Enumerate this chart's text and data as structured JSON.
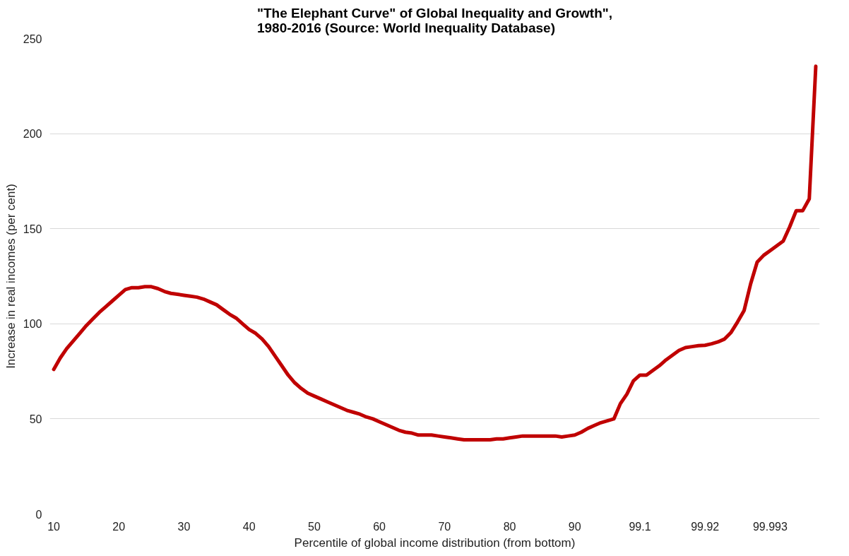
{
  "chart_data": {
    "type": "line",
    "title": "\"The Elephant Curve\" of Global Inequality and Growth\",\n1980-2016 (Source: World Inequality Database)",
    "xlabel": "Percentile of global income distribution (from bottom)",
    "ylabel": "Increase in real incomes (per cent)",
    "categories": [
      "10",
      null,
      null,
      null,
      null,
      null,
      null,
      null,
      null,
      null,
      "20",
      null,
      null,
      null,
      null,
      null,
      null,
      null,
      null,
      null,
      "30",
      null,
      null,
      null,
      null,
      null,
      null,
      null,
      null,
      null,
      "40",
      null,
      null,
      null,
      null,
      null,
      null,
      null,
      null,
      null,
      "50",
      null,
      null,
      null,
      null,
      null,
      null,
      null,
      null,
      null,
      "60",
      null,
      null,
      null,
      null,
      null,
      null,
      null,
      null,
      null,
      "70",
      null,
      null,
      null,
      null,
      null,
      null,
      null,
      null,
      null,
      "80",
      null,
      null,
      null,
      null,
      null,
      null,
      null,
      null,
      null,
      "90",
      null,
      null,
      null,
      null,
      null,
      null,
      null,
      null,
      null,
      "99.1",
      null,
      null,
      null,
      null,
      null,
      null,
      null,
      null,
      null,
      "99.92",
      null,
      null,
      null,
      null,
      null,
      null,
      null,
      null,
      null,
      "99.993",
      null,
      null,
      null,
      null,
      null,
      null,
      null
    ],
    "series": [
      {
        "color": "#c00000",
        "values": [
          76,
          82,
          87,
          91,
          95,
          99,
          102.5,
          106,
          109,
          112,
          115,
          118,
          119,
          119,
          119.5,
          119.5,
          118.5,
          117,
          116,
          115.5,
          115,
          114.5,
          114,
          113,
          111.5,
          110,
          107.5,
          105,
          103,
          100,
          97,
          95,
          92,
          88,
          83,
          78,
          73,
          69,
          66,
          63.5,
          62,
          60.5,
          59,
          57.5,
          56,
          54.5,
          53.5,
          52.5,
          51,
          50,
          48.5,
          47,
          45.5,
          44,
          43,
          42.5,
          41.5,
          41.5,
          41.5,
          41,
          40.5,
          40,
          39.5,
          39,
          39,
          39,
          39,
          39,
          39.5,
          39.5,
          40,
          40.5,
          41,
          41,
          41,
          41,
          41,
          41,
          40.5,
          41,
          41.5,
          43,
          45,
          46.5,
          48,
          49,
          50,
          58,
          63,
          70,
          73,
          73,
          75.5,
          78,
          81,
          83.5,
          86,
          87.5,
          88,
          88.5,
          88.7,
          89.5,
          90.5,
          92,
          95.5,
          101,
          107,
          121,
          132.4,
          136,
          138.5,
          141,
          143.5,
          151,
          159.5,
          159.5,
          165.7,
          235.4
        ]
      }
    ],
    "ylim": [
      0,
      250
    ],
    "yticks": [
      0,
      50,
      100,
      150,
      200,
      250
    ],
    "grid": "y",
    "marker": "none",
    "line_style": "solid"
  }
}
